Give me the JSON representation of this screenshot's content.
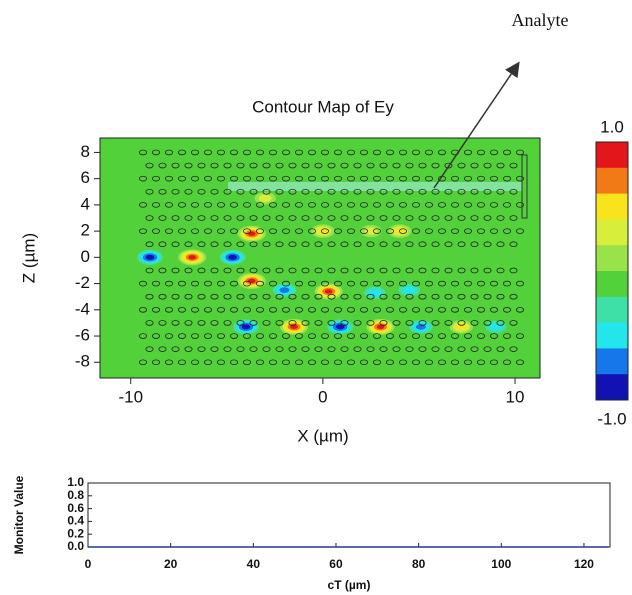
{
  "chart_data": [
    {
      "type": "contour",
      "title": "Contour Map of Ey",
      "xlabel": "X (µm)",
      "ylabel": "Z (µm)",
      "annotation": "Analyte",
      "xlim": [
        -11.6,
        11.3
      ],
      "xticks": [
        -10,
        0,
        10
      ],
      "ylim": [
        -9.2,
        9.1
      ],
      "yticks": [
        -8,
        -6,
        -4,
        -2,
        0,
        2,
        4,
        6,
        8
      ],
      "clim": [
        -1,
        1
      ],
      "cticks": [
        {
          "value": 1,
          "label": "1.0"
        },
        {
          "value": -1,
          "label": "-1.0"
        }
      ],
      "colormap": [
        "#e3161c",
        "#f17a17",
        "#f9e31c",
        "#d7ef3a",
        "#99e24a",
        "#52d13a",
        "#3ee0a8",
        "#22e6ec",
        "#1677ea",
        "#1212b4"
      ],
      "blobs": [
        {
          "x": -9,
          "z": 0,
          "value": -1
        },
        {
          "x": -6.8,
          "z": 0,
          "value": 1
        },
        {
          "x": -4.7,
          "z": 0,
          "value": -1
        },
        {
          "x": -3.7,
          "z": 1.8,
          "value": 0.9
        },
        {
          "x": -3.7,
          "z": -1.8,
          "value": 0.9
        },
        {
          "x": -2,
          "z": -2.5,
          "value": -0.6
        },
        {
          "x": 0.3,
          "z": -2.6,
          "value": 0.8
        },
        {
          "x": 2.7,
          "z": -2.7,
          "value": -0.4
        },
        {
          "x": 4.5,
          "z": -2.5,
          "value": -0.4
        },
        {
          "x": -4,
          "z": -5.3,
          "value": -0.8
        },
        {
          "x": -1.5,
          "z": -5.3,
          "value": 1
        },
        {
          "x": 0.9,
          "z": -5.3,
          "value": -1
        },
        {
          "x": 3,
          "z": -5.3,
          "value": 1
        },
        {
          "x": 5.1,
          "z": -5.3,
          "value": -0.6
        },
        {
          "x": 7.2,
          "z": -5.3,
          "value": 0.6
        },
        {
          "x": 9,
          "z": -5.3,
          "value": -0.4
        },
        {
          "x": 0,
          "z": 2,
          "value": 0.5
        },
        {
          "x": 2.5,
          "z": 2,
          "value": 0.4
        },
        {
          "x": 4,
          "z": 2,
          "value": 0.5
        },
        {
          "x": -3,
          "z": 4.5,
          "value": 0.4
        }
      ]
    },
    {
      "type": "line",
      "xlabel": "cT (µm)",
      "ylabel": "Monitor Value",
      "xlim": [
        0,
        126.3
      ],
      "xticks": [
        0,
        20,
        40,
        60,
        80,
        100,
        120
      ],
      "ylim": [
        0,
        1
      ],
      "yticks": [
        {
          "value": 0,
          "label": "0.0"
        },
        0.2,
        0.4,
        0.6,
        0.8,
        {
          "value": 1,
          "label": "1.0"
        }
      ],
      "series": [
        {
          "color": "#1f3a93",
          "x": [
            0,
            126
          ],
          "values": [
            0,
            0
          ]
        }
      ]
    }
  ]
}
